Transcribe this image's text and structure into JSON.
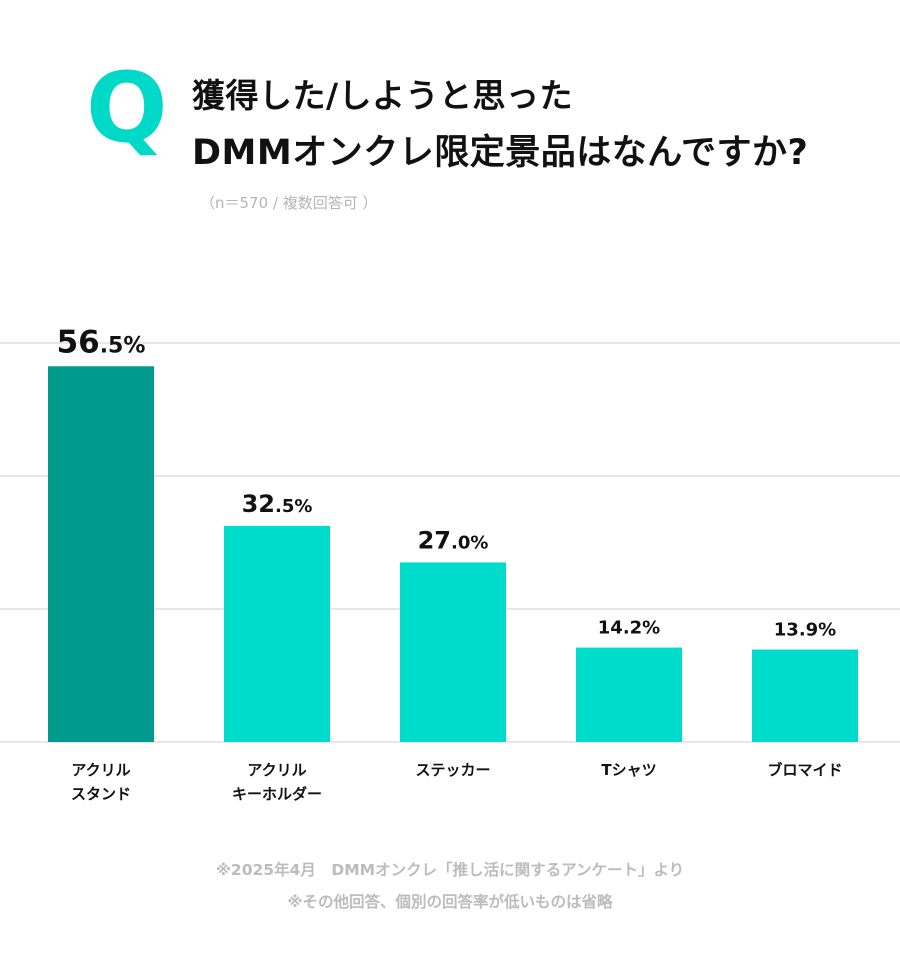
{
  "header": {
    "q_mark": "Q",
    "title_line1": "獲得した/しようと思った",
    "title_line2": "DMMオンクレ限定景品はなんですか?",
    "sample_note": "（n＝570 / 複数回答可 ）"
  },
  "colors": {
    "accent": "#00d8c8",
    "highlight_bar": "#009b8d",
    "bar": "#00dccb",
    "grid": "#cfcfcf",
    "text": "#111111",
    "muted": "#bcbcbc"
  },
  "chart_data": {
    "type": "bar",
    "title": "獲得した/しようと思った DMMオンクレ限定景品はなんですか?",
    "categories": [
      "アクリル\nスタンド",
      "アクリル\nキーホルダー",
      "ステッカー",
      "Tシャツ",
      "ブロマイド"
    ],
    "values": [
      56.5,
      32.5,
      27.0,
      14.2,
      13.9
    ],
    "labels": [
      {
        "major": "56",
        "minor": ".5%"
      },
      {
        "major": "32",
        "minor": ".5%"
      },
      {
        "major": "27",
        "minor": ".0%"
      },
      {
        "major": "14.2%",
        "minor": ""
      },
      {
        "major": "13.9%",
        "minor": ""
      }
    ],
    "highlight_index": 0,
    "ylim": [
      0,
      60
    ],
    "gridlines": [
      0,
      20,
      40,
      60
    ],
    "grid": true,
    "xlabel": "",
    "ylabel": "",
    "unit": "%"
  },
  "footnotes": {
    "line1": "※2025年4月　DMMオンクレ「推し活に関するアンケート」より",
    "line2": "※その他回答、個別の回答率が低いものは省略"
  }
}
